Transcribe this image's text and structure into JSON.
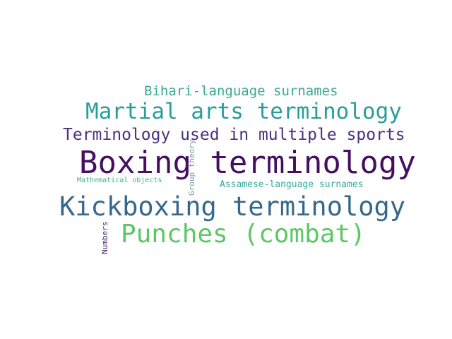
{
  "word_cloud": {
    "words": [
      {
        "text": "Bihari-language surnames",
        "color": "#3aa88f"
      },
      {
        "text": "Martial arts terminology",
        "color": "#2a9d9a"
      },
      {
        "text": "Terminology used in multiple sports",
        "color": "#46337e"
      },
      {
        "text": "Boxing terminology",
        "color": "#440f62"
      },
      {
        "text": "Group theory",
        "color": "#7f93a8"
      },
      {
        "text": "Mathematical objects",
        "color": "#3ab48a"
      },
      {
        "text": "Assamese-language surnames",
        "color": "#35a89a"
      },
      {
        "text": "Kickboxing terminology",
        "color": "#37688c"
      },
      {
        "text": "Punches (combat)",
        "color": "#5bc864"
      },
      {
        "text": "Numbers",
        "color": "#4a2b6e"
      }
    ]
  }
}
